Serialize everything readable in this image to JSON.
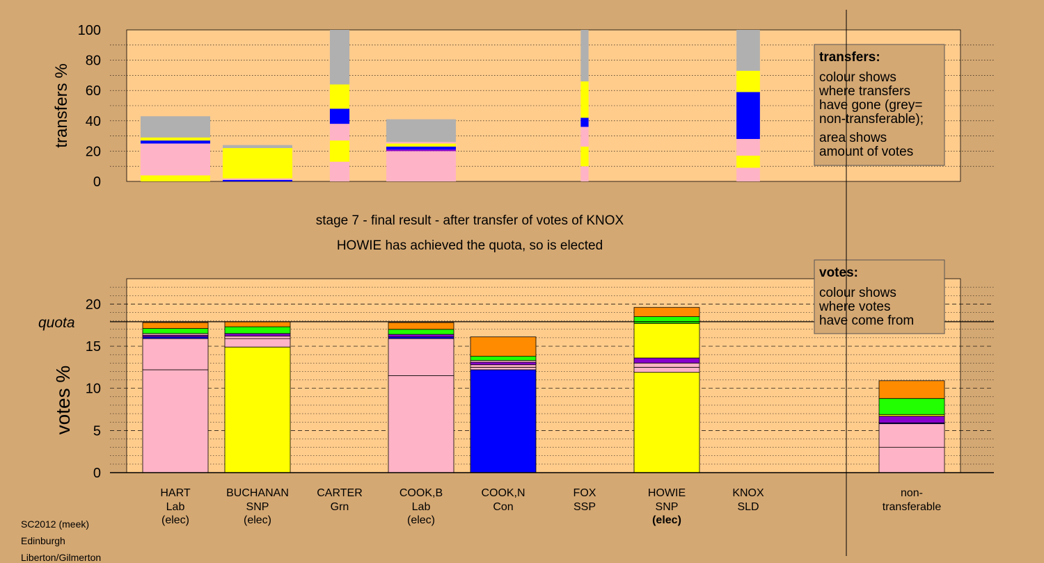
{
  "colors": {
    "background": "#D4A873",
    "panel": "#FFCC8C",
    "Lab": "#FFB3C6",
    "SNP": "#FFFF00",
    "Con": "#0000FF",
    "SSP": "#8800CC",
    "Grn": "#22FF00",
    "SLD": "#FF8C00",
    "nontransferable": "#B0B0B0"
  },
  "chart_data": [
    {
      "type": "bar",
      "ylabel": "transfers %",
      "ylim": [
        0,
        100
      ],
      "yticks": [
        0,
        20,
        40,
        60,
        80,
        100
      ],
      "categories": [
        "HART",
        "BUCHANAN",
        "CARTER",
        "COOK,B",
        "COOK,N",
        "FOX",
        "HOWIE",
        "KNOX"
      ],
      "bars": [
        {
          "candidate": "HART",
          "width_votes_pct": 17.8,
          "segments": [
            {
              "party": "SNP",
              "value": 4
            },
            {
              "party": "Lab",
              "value": 21
            },
            {
              "party": "Con",
              "value": 2
            },
            {
              "party": "SNP",
              "value": 2
            },
            {
              "party": "nontransferable",
              "value": 14
            }
          ]
        },
        {
          "candidate": "BUCHANAN",
          "width_votes_pct": 17.8,
          "segments": [
            {
              "party": "Con",
              "value": 1
            },
            {
              "party": "Lab",
              "value": 1
            },
            {
              "party": "SNP",
              "value": 20
            },
            {
              "party": "nontransferable",
              "value": 2
            }
          ]
        },
        {
          "candidate": "CARTER",
          "width_votes_pct": 5.0,
          "segments": [
            {
              "party": "Lab",
              "value": 13
            },
            {
              "party": "SNP",
              "value": 14
            },
            {
              "party": "Lab",
              "value": 11
            },
            {
              "party": "Con",
              "value": 10
            },
            {
              "party": "SNP",
              "value": 16
            },
            {
              "party": "nontransferable",
              "value": 36
            }
          ]
        },
        {
          "candidate": "COOK,B",
          "width_votes_pct": 17.8,
          "segments": [
            {
              "party": "Lab",
              "value": 20
            },
            {
              "party": "SSP",
              "value": 1
            },
            {
              "party": "Con",
              "value": 2
            },
            {
              "party": "SNP",
              "value": 2
            },
            {
              "party": "Lab",
              "value": 1
            },
            {
              "party": "nontransferable",
              "value": 15
            }
          ]
        },
        {
          "candidate": "COOK,N",
          "width_votes_pct": 0,
          "segments": []
        },
        {
          "candidate": "FOX",
          "width_votes_pct": 2.0,
          "segments": [
            {
              "party": "Lab",
              "value": 10
            },
            {
              "party": "SNP",
              "value": 13
            },
            {
              "party": "Lab",
              "value": 13
            },
            {
              "party": "Con",
              "value": 6
            },
            {
              "party": "SNP",
              "value": 24
            },
            {
              "party": "nontransferable",
              "value": 34
            }
          ]
        },
        {
          "candidate": "HOWIE",
          "width_votes_pct": 0,
          "segments": []
        },
        {
          "candidate": "KNOX",
          "width_votes_pct": 6.0,
          "segments": [
            {
              "party": "Lab",
              "value": 9
            },
            {
              "party": "SNP",
              "value": 8
            },
            {
              "party": "Lab",
              "value": 11
            },
            {
              "party": "Con",
              "value": 31
            },
            {
              "party": "SNP",
              "value": 14
            },
            {
              "party": "nontransferable",
              "value": 27
            }
          ]
        }
      ],
      "legend": {
        "title": "transfers:",
        "lines": [
          "colour shows",
          "where transfers",
          "have gone (grey=",
          "non-transferable);",
          "area shows",
          "amount of votes"
        ],
        "placement": "top-right"
      }
    },
    {
      "type": "bar",
      "stacked": true,
      "ylabel": "votes %",
      "ylim": [
        0,
        23
      ],
      "yticks": [
        0,
        5,
        10,
        15,
        20
      ],
      "quota_label": "quota",
      "quota_value": 17.9,
      "categories": [
        {
          "name": "HART",
          "party": "Lab",
          "status": "(elec)",
          "bold": false
        },
        {
          "name": "BUCHANAN",
          "party": "SNP",
          "status": "(elec)",
          "bold": false
        },
        {
          "name": "CARTER",
          "party": "Grn",
          "status": "",
          "bold": false
        },
        {
          "name": "COOK,B",
          "party": "Lab",
          "status": "(elec)",
          "bold": false
        },
        {
          "name": "COOK,N",
          "party": "Con",
          "status": "",
          "bold": false
        },
        {
          "name": "FOX",
          "party": "SSP",
          "status": "",
          "bold": false
        },
        {
          "name": "HOWIE",
          "party": "SNP",
          "status": "(elec)",
          "bold": true
        },
        {
          "name": "KNOX",
          "party": "SLD",
          "status": "",
          "bold": false
        }
      ],
      "nontransferable_label": [
        "non-",
        "transferable"
      ],
      "stacks": [
        {
          "candidate": "HART",
          "segments": [
            {
              "party": "Lab",
              "value": 12.2
            },
            {
              "party": "Lab",
              "value": 3.7
            },
            {
              "party": "Con",
              "value": 0.2
            },
            {
              "party": "SSP",
              "value": 0.2
            },
            {
              "party": "Lab",
              "value": 0.2
            },
            {
              "party": "Grn",
              "value": 0.6
            },
            {
              "party": "SLD",
              "value": 0.7
            }
          ]
        },
        {
          "candidate": "BUCHANAN",
          "segments": [
            {
              "party": "SNP",
              "value": 14.9
            },
            {
              "party": "Lab",
              "value": 1.0
            },
            {
              "party": "Lab",
              "value": 0.3
            },
            {
              "party": "SSP",
              "value": 0.3
            },
            {
              "party": "Grn",
              "value": 0.8
            },
            {
              "party": "SLD",
              "value": 0.6
            }
          ]
        },
        {
          "candidate": "CARTER",
          "segments": []
        },
        {
          "candidate": "COOK,B",
          "segments": [
            {
              "party": "Lab",
              "value": 11.5
            },
            {
              "party": "Lab",
              "value": 4.4
            },
            {
              "party": "Con",
              "value": 0.2
            },
            {
              "party": "SSP",
              "value": 0.3
            },
            {
              "party": "Grn",
              "value": 0.6
            },
            {
              "party": "SLD",
              "value": 0.8
            }
          ]
        },
        {
          "candidate": "COOK,N",
          "segments": [
            {
              "party": "Con",
              "value": 12.2
            },
            {
              "party": "Lab",
              "value": 0.3
            },
            {
              "party": "Lab",
              "value": 0.3
            },
            {
              "party": "SSP",
              "value": 0.3
            },
            {
              "party": "Lab",
              "value": 0.2
            },
            {
              "party": "Grn",
              "value": 0.5
            },
            {
              "party": "SLD",
              "value": 2.3
            }
          ]
        },
        {
          "candidate": "FOX",
          "segments": []
        },
        {
          "candidate": "HOWIE",
          "segments": [
            {
              "party": "SNP",
              "value": 11.9
            },
            {
              "party": "Lab",
              "value": 0.6
            },
            {
              "party": "Lab",
              "value": 0.5
            },
            {
              "party": "SSP",
              "value": 0.6
            },
            {
              "party": "SNP",
              "value": 4.1
            },
            {
              "party": "Grn",
              "value": 0.8
            },
            {
              "party": "SLD",
              "value": 1.1
            }
          ]
        },
        {
          "candidate": "KNOX",
          "segments": []
        },
        {
          "candidate": "non-transferable",
          "segments": [
            {
              "party": "Lab",
              "value": 3.0
            },
            {
              "party": "Lab",
              "value": 2.8
            },
            {
              "party": "Con",
              "value": 0.1
            },
            {
              "party": "SSP",
              "value": 0.8
            },
            {
              "party": "SNP",
              "value": 0.2
            },
            {
              "party": "Grn",
              "value": 1.9
            },
            {
              "party": "SLD",
              "value": 2.1
            }
          ]
        }
      ],
      "legend": {
        "title": "votes:",
        "lines": [
          "colour shows",
          "where votes",
          "have come from"
        ],
        "placement": "top-right"
      }
    }
  ],
  "stage_title": "stage 7 - final result - after transfer of votes of KNOX",
  "stage_subtitle": "HOWIE has achieved the quota, so is elected",
  "footer": {
    "line1": "SC2012 (meek)",
    "line2": "Edinburgh",
    "line3": "Liberton/Gilmerton"
  }
}
